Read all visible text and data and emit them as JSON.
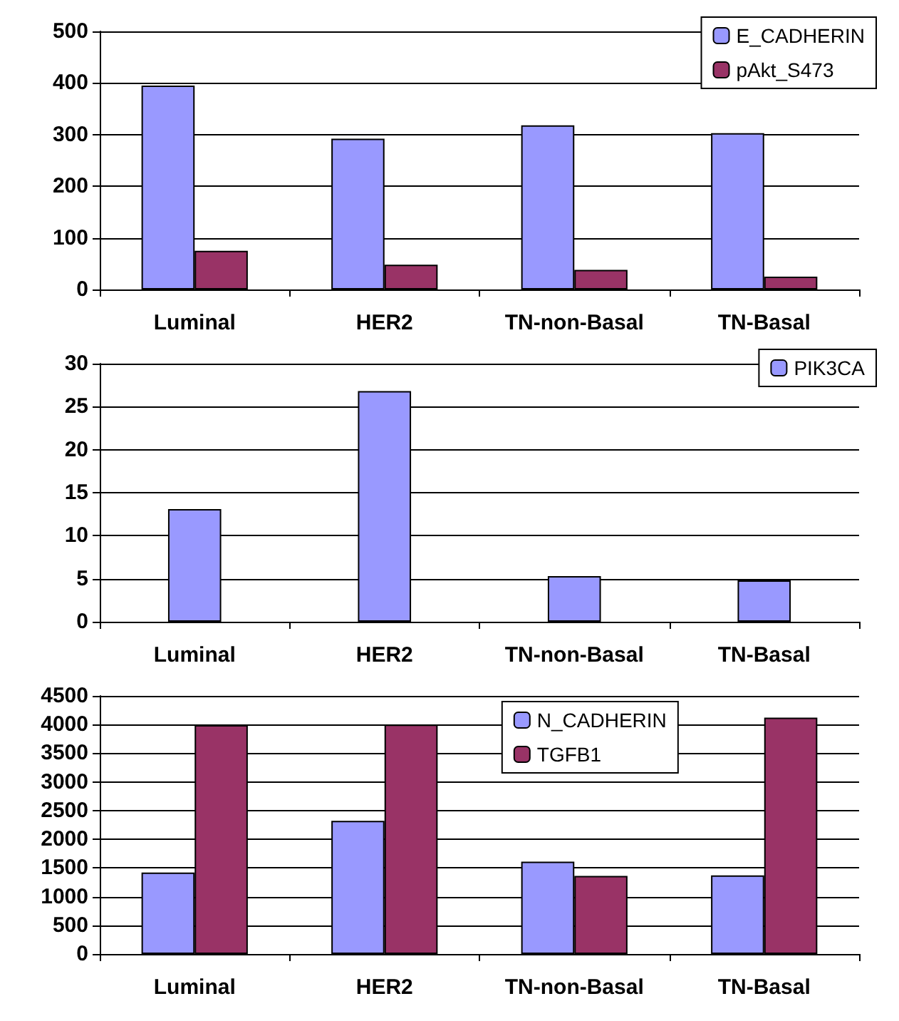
{
  "chart_data": [
    {
      "type": "bar",
      "categories": [
        "Luminal",
        "HER2",
        "TN-non-Basal",
        "TN-Basal"
      ],
      "series": [
        {
          "name": "E_CADHERIN",
          "color": "#9999ff",
          "values": [
            395,
            292,
            318,
            303
          ]
        },
        {
          "name": "pAkt_S473",
          "color": "#993366",
          "values": [
            75,
            48,
            38,
            25
          ]
        }
      ],
      "ylim": [
        0,
        500
      ],
      "yticks": [
        0,
        100,
        200,
        300,
        400,
        500
      ],
      "grid": "y",
      "legend": "top right"
    },
    {
      "type": "bar",
      "categories": [
        "Luminal",
        "HER2",
        "TN-non-Basal",
        "TN-Basal"
      ],
      "series": [
        {
          "name": "PIK3CA",
          "color": "#9999ff",
          "values": [
            13.1,
            26.8,
            5.3,
            4.8
          ]
        }
      ],
      "ylim": [
        0,
        30
      ],
      "yticks": [
        0,
        5,
        10,
        15,
        20,
        25,
        30
      ],
      "grid": "y",
      "legend": "top right"
    },
    {
      "type": "bar",
      "categories": [
        "Luminal",
        "HER2",
        "TN-non-Basal",
        "TN-Basal"
      ],
      "series": [
        {
          "name": "N_CADHERIN",
          "color": "#9999ff",
          "values": [
            1420,
            2320,
            1610,
            1370
          ]
        },
        {
          "name": "TGFB1",
          "color": "#993366",
          "values": [
            3990,
            4000,
            1360,
            4120
          ]
        }
      ],
      "ylim": [
        0,
        4500
      ],
      "yticks": [
        0,
        500,
        1000,
        1500,
        2000,
        2500,
        3000,
        3500,
        4000,
        4500
      ],
      "grid": "y",
      "legend": "top"
    }
  ]
}
